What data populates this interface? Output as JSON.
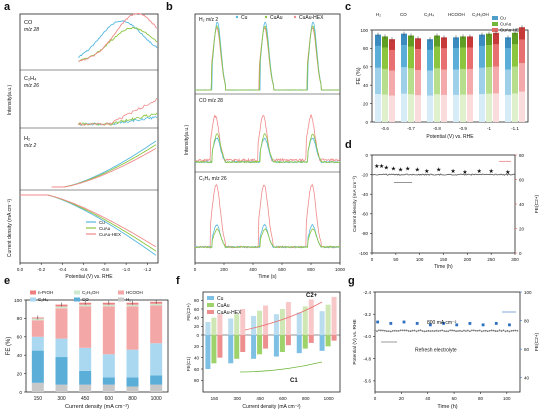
{
  "panel_labels": [
    "a",
    "b",
    "c",
    "d",
    "e",
    "f",
    "g"
  ],
  "chart_data": [
    {
      "id": "a",
      "type": "line",
      "title": "",
      "xlabel": "Potential (V) vs. RHE",
      "ylabel_top": "Intensity(a.u.)",
      "ylabel_top_sub": "MS",
      "ylabel_bottom": "Current density (mA cm⁻²)",
      "xticks": [
        "0.0",
        "-0.2",
        "-0.4",
        "-0.6",
        "-0.8",
        "-1.0",
        "-1.2"
      ],
      "xlim": [
        0.0,
        -1.3
      ],
      "subpanels": [
        {
          "label": "CO",
          "sublabel": "m/z 28"
        },
        {
          "label": "C₂H₄",
          "sublabel": "m/z 26"
        },
        {
          "label": "H₂",
          "sublabel": "m/z 2"
        }
      ],
      "legend": [
        "Cu",
        "CuAu",
        "CuAu-HEX"
      ],
      "colors": {
        "Cu": "#55b8e0",
        "CuAu": "#8cc63f",
        "CuAu-HEX": "#f08a8a"
      }
    },
    {
      "id": "b",
      "type": "line",
      "xlabel": "Time (s)",
      "ylabel": "Intensity(a.u.)",
      "ylabel_sub": "MS",
      "xticks": [
        "0",
        "200",
        "400",
        "600",
        "800",
        "1000"
      ],
      "xlim": [
        0,
        1000
      ],
      "legend": [
        "Cu",
        "CuAu",
        "CuAu-HEX"
      ],
      "subpanels": [
        {
          "label": "H₂",
          "sublabel": "m/z 2"
        },
        {
          "label": "CO",
          "sublabel": "m/z 28"
        },
        {
          "label": "C₂H₄",
          "sublabel": "m/z 26"
        }
      ],
      "pulse_centers_s": [
        150,
        480,
        810
      ]
    },
    {
      "id": "c",
      "type": "bar",
      "xlabel": "Potential (V) vs. RHE",
      "ylabel": "FE (%)",
      "ylim": [
        0,
        100
      ],
      "yticks": [
        "0",
        "20",
        "40",
        "60",
        "80",
        "100"
      ],
      "categories": [
        "-0.6",
        "-0.7",
        "-0.8",
        "-0.9",
        "-1",
        "-1.1"
      ],
      "legend_products": [
        "H₂",
        "CO",
        "C₂H₄",
        "HCOOH",
        "C₂H₅OH"
      ],
      "legend_catalysts": [
        "Cu",
        "CuAu",
        "CuAu-HEX"
      ],
      "series": [
        {
          "name": "Cu",
          "values": [
            95,
            96,
            90,
            92,
            95,
            92
          ]
        },
        {
          "name": "CuAu",
          "values": [
            93,
            94,
            94,
            93,
            96,
            97
          ]
        },
        {
          "name": "CuAu-HEX",
          "values": [
            90,
            91,
            92,
            93,
            97,
            103
          ]
        }
      ]
    },
    {
      "id": "d",
      "type": "scatter",
      "xlabel": "Time (h)",
      "ylabel": "Current density (mA cm⁻²)",
      "ylabel_right": "FE",
      "ylabel_right_sub": "C2+",
      "xlim": [
        0,
        300
      ],
      "ylim": [
        -100,
        0
      ],
      "ylim_right": [
        0,
        80
      ],
      "xticks": [
        "0",
        "50",
        "100",
        "150",
        "200",
        "250",
        "300"
      ],
      "yticks": [
        "0",
        "-20",
        "-40",
        "-60",
        "-80",
        "-100"
      ],
      "yticks_right": [
        "0",
        "20",
        "40",
        "60",
        "80"
      ],
      "current_density": -20,
      "fe_points": {
        "x": [
          10,
          20,
          30,
          45,
          60,
          75,
          95,
          115,
          140,
          170,
          195,
          225,
          250,
          285
        ],
        "y": [
          71,
          71,
          70,
          69,
          68,
          69,
          68,
          67,
          68,
          67,
          66,
          67,
          67,
          66
        ]
      }
    },
    {
      "id": "e",
      "type": "bar",
      "xlabel": "Current density (mA cm⁻²)",
      "ylabel": "FE (%)",
      "ylim": [
        0,
        100
      ],
      "yticks": [
        "0",
        "20",
        "40",
        "60",
        "80",
        "100"
      ],
      "categories": [
        "150",
        "300",
        "450",
        "600",
        "800",
        "1000"
      ],
      "legend": [
        "n-PrOH",
        "C₂H₅OH",
        "HCOOH",
        "C₂H₄",
        "CO",
        "H₂"
      ],
      "stack_order": [
        "H₂",
        "CO",
        "C₂H₄",
        "HCOOH",
        "C₂H₅OH",
        "n-PrOH"
      ],
      "stacks": [
        {
          "H₂": 10,
          "CO": 35,
          "C₂H₄": 15,
          "HCOOH": 18,
          "C₂H₅OH": 2,
          "n-PrOH": 1
        },
        {
          "H₂": 8,
          "CO": 30,
          "C₂H₄": 20,
          "HCOOH": 33,
          "C₂H₅OH": 2,
          "n-PrOH": 2
        },
        {
          "H₂": 8,
          "CO": 15,
          "C₂H₄": 25,
          "HCOOH": 45,
          "C₂H₅OH": 2,
          "n-PrOH": 2
        },
        {
          "H₂": 8,
          "CO": 8,
          "C₂H₄": 25,
          "HCOOH": 52,
          "C₂H₅OH": 2,
          "n-PrOH": 2
        },
        {
          "H₂": 6,
          "CO": 10,
          "C₂H₄": 30,
          "HCOOH": 47,
          "C₂H₅OH": 2,
          "n-PrOH": 2
        },
        {
          "H₂": 8,
          "CO": 10,
          "C₂H₄": 35,
          "HCOOH": 41,
          "C₂H₅OH": 2,
          "n-PrOH": 2
        }
      ],
      "colors": {
        "n-PrOH": "#f08080",
        "C₂H₅OH": "#cfe8d0",
        "HCOOH": "#f4a7a7",
        "C₂H₄": "#a9d8f0",
        "CO": "#5aaed8",
        "H₂": "#c8c8c8"
      }
    },
    {
      "id": "f",
      "type": "bar",
      "xlabel": "Current density (mA cm⁻²)",
      "ylabel_top": "FE",
      "ylabel_top_sub": "C2+",
      "ylabel_bottom": "FE",
      "ylabel_bottom_sub": "C1",
      "categories": [
        "150",
        "300",
        "450",
        "600",
        "800",
        "1000"
      ],
      "yticks_top": [
        "0",
        "20",
        "40",
        "60",
        "80"
      ],
      "yticks_bottom": [
        "0",
        "20",
        "40",
        "60",
        "80"
      ],
      "legend": [
        "Cu",
        "CuAu",
        "CuAu-HEX"
      ],
      "arrow_labels": {
        "top": "C2+",
        "bottom": "C1"
      },
      "series": [
        {
          "name": "Cu",
          "c2": [
            30,
            38,
            44,
            48,
            52,
            55
          ],
          "c1": [
            60,
            50,
            42,
            38,
            32,
            28
          ]
        },
        {
          "name": "CuAu",
          "c2": [
            40,
            48,
            56,
            60,
            66,
            70
          ],
          "c1": [
            50,
            42,
            34,
            30,
            24,
            20
          ]
        },
        {
          "name": "CuAu-HEX",
          "c2": [
            48,
            60,
            68,
            76,
            82,
            88
          ],
          "c1": [
            40,
            30,
            24,
            18,
            14,
            10
          ]
        }
      ]
    },
    {
      "id": "g",
      "type": "scatter",
      "xlabel": "Time (h)",
      "ylabel": "Potential (V) vs. RHE",
      "ylabel_right": "FE",
      "ylabel_right_sub": "C2+",
      "xlim": [
        0,
        110
      ],
      "xticks": [
        "0",
        "20",
        "40",
        "60",
        "80",
        "100"
      ],
      "yticks": [
        "-2.4",
        "-3.2",
        "-4.0",
        "-4.8",
        "-5.6"
      ],
      "yticks_right": [
        "40",
        "60",
        "80",
        "100"
      ],
      "ylim": [
        -6.0,
        -2.4
      ],
      "ylim_right": [
        30,
        100
      ],
      "annotation_current": "800 mA cm⁻²",
      "annotation_refresh": "Refresh electrolyte",
      "potential": -3.8,
      "fe_points": {
        "x": [
          2,
          12,
          22,
          32,
          42,
          52,
          62,
          72,
          82,
          92,
          102
        ],
        "y": [
          79,
          78,
          79,
          78,
          77,
          78,
          77,
          78,
          77,
          78,
          77
        ]
      }
    }
  ]
}
